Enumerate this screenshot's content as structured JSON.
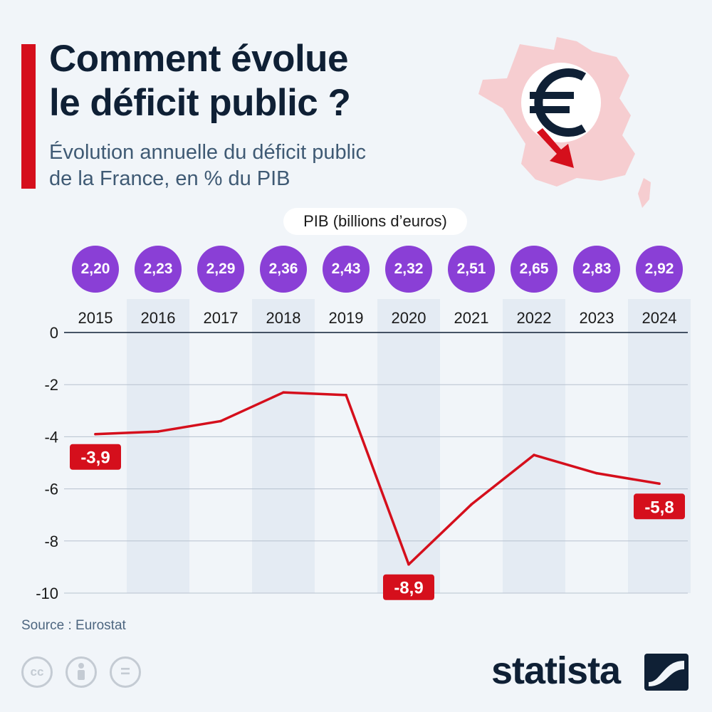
{
  "header": {
    "title": "Comment évolue\nle déficit public ?",
    "subtitle": "Évolution annuelle du déficit public\nde la France, en % du PIB"
  },
  "pib": {
    "label": "PIB (billions d’euros)",
    "values": [
      "2,20",
      "2,23",
      "2,29",
      "2,36",
      "2,43",
      "2,32",
      "2,51",
      "2,65",
      "2,83",
      "2,92"
    ]
  },
  "chart_data": {
    "type": "line",
    "x": [
      "2015",
      "2016",
      "2017",
      "2018",
      "2019",
      "2020",
      "2021",
      "2022",
      "2023",
      "2024"
    ],
    "series": [
      {
        "values": [
          -3.9,
          -3.8,
          -3.4,
          -2.3,
          -2.4,
          -8.9,
          -6.6,
          -4.7,
          -5.4,
          -5.8
        ]
      }
    ],
    "y_ticks": [
      "0",
      "-2",
      "-4",
      "-6",
      "-8",
      "-10"
    ],
    "ylim": [
      -10,
      0
    ],
    "annotations": [
      {
        "index": 0,
        "text": "-3,9"
      },
      {
        "index": 5,
        "text": "-8,9"
      },
      {
        "index": 9,
        "text": "-5,8"
      }
    ],
    "grid": true,
    "colors": {
      "line": "#d50f1c",
      "band": "#e4ebf3",
      "grid": "#b7c2cf",
      "axis": "#0f2035"
    }
  },
  "footer": {
    "source": "Source : Eurostat",
    "brand": "statista",
    "icons": [
      "cc-icon",
      "attribution-icon",
      "no-derivatives-icon"
    ],
    "cc_text": "cc",
    "nd_text": "="
  }
}
